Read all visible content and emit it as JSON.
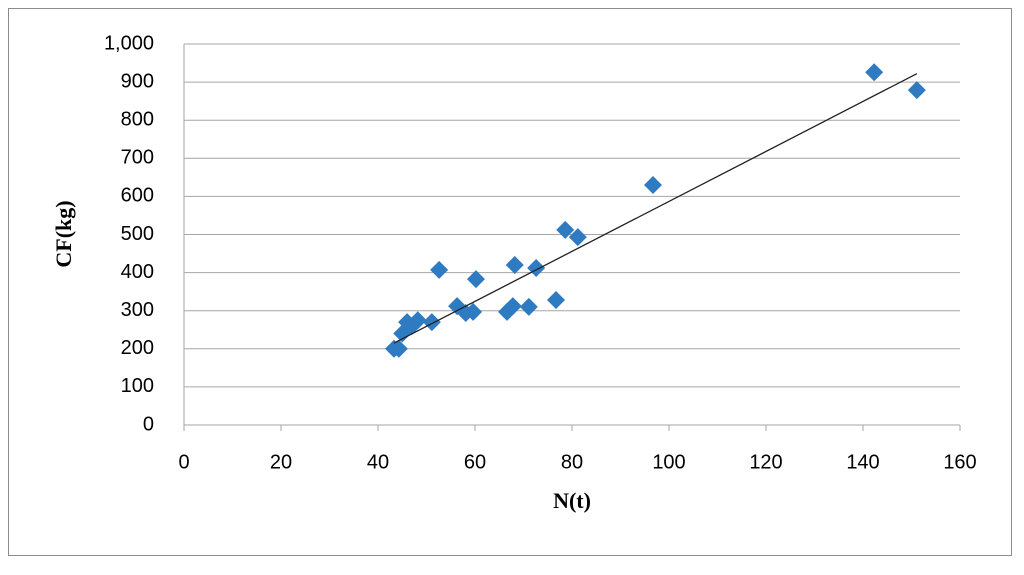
{
  "chart_data": {
    "type": "scatter",
    "x_label": "N(t)",
    "y_label": "CF(kg)",
    "series": [
      {
        "color": "#2e7bc1",
        "x": [
          43.3,
          44.3,
          45.0,
          46.0,
          47.0,
          48.2,
          51.1,
          52.6,
          56.3,
          58.1,
          59.6,
          60.2,
          66.6,
          67.8,
          68.2,
          71.1,
          72.6,
          76.7,
          78.6,
          81.2,
          96.7,
          142.3,
          151.1
        ],
        "values": [
          200,
          200,
          240,
          270,
          260,
          275,
          270,
          407,
          312,
          294,
          297,
          383,
          297,
          312,
          420,
          310,
          412,
          328,
          512,
          493,
          630,
          926,
          879
        ]
      }
    ],
    "trendline": {
      "color": "#222222",
      "x": [
        43.3,
        151.1
      ],
      "y": [
        215,
        922
      ]
    },
    "xlim": [
      0,
      160
    ],
    "xticks": [
      0,
      20,
      40,
      60,
      80,
      100,
      120,
      140,
      160
    ],
    "ylim": [
      0,
      1000
    ],
    "yticks": [
      0,
      100,
      200,
      300,
      400,
      500,
      600,
      700,
      800,
      900,
      {
        "value": 1000,
        "label": "1,000"
      }
    ],
    "grid": true
  }
}
